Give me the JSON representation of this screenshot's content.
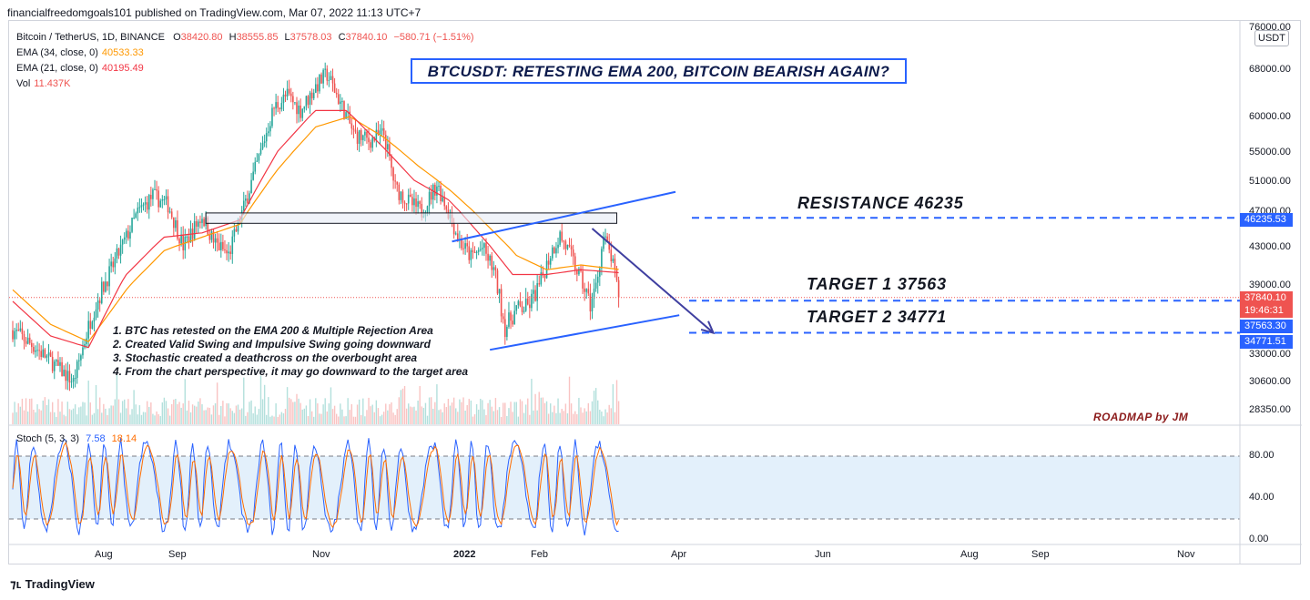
{
  "publisher_line": "financialfreedomgoals101 published on TradingView.com, Mar 07, 2022 11:13 UTC+7",
  "legend": {
    "symbol": "Bitcoin / TetherUS, 1D, BINANCE",
    "open_label": "O",
    "open": "38420.80",
    "high_label": "H",
    "high": "38555.85",
    "low_label": "L",
    "low": "37578.03",
    "close_label": "C",
    "close": "37840.10",
    "change": "−580.71 (−1.51%)",
    "ema34_label": "EMA (34, close, 0)",
    "ema34_value": "40533.33",
    "ema21_label": "EMA (21, close, 0)",
    "ema21_value": "40195.49",
    "vol_label": "Vol",
    "vol_value": "11.437K"
  },
  "title": "BTCUSDT: RETESTING EMA 200, BITCOIN BEARISH AGAIN?",
  "levels": {
    "resistance": "RESISTANCE  46235",
    "target1": "TARGET 1  37563",
    "target2": "TARGET 2  34771"
  },
  "notes": [
    "1. BTC has retested on the EMA 200 & Multiple Rejection Area",
    "2. Created Valid Swing and Impulsive Swing going downward",
    "3. Stochastic created a deathcross on the overbought area",
    "4. From the chart perspective, it may go downward to the target area"
  ],
  "roadmap": "ROADMAP by JM",
  "currency_badge": "USDT",
  "price_axis": [
    "76000.00",
    "68000.00",
    "60000.00",
    "55000.00",
    "51000.00",
    "47000.00",
    "43000.00",
    "39000.00",
    "33000.00",
    "30600.00",
    "28350.00"
  ],
  "price_tags": {
    "resistance": "46235.53",
    "last": "37840.10",
    "countdown": "19:46:31",
    "target1": "37563.30",
    "target2": "34771.51"
  },
  "time_axis": [
    {
      "label": "Aug",
      "bold": false
    },
    {
      "label": "Sep",
      "bold": false
    },
    {
      "label": "Nov",
      "bold": false
    },
    {
      "label": "2022",
      "bold": true
    },
    {
      "label": "Feb",
      "bold": false
    },
    {
      "label": "Apr",
      "bold": false
    },
    {
      "label": "Jun",
      "bold": false
    },
    {
      "label": "Aug",
      "bold": false
    },
    {
      "label": "Sep",
      "bold": false
    },
    {
      "label": "Nov",
      "bold": false
    }
  ],
  "stoch": {
    "label": "Stoch (5, 3, 3)",
    "k_value": "7.58",
    "d_value": "18.14",
    "axis": [
      "80.00",
      "40.00",
      "0.00"
    ]
  },
  "branding": "TradingView",
  "colors": {
    "up": "#26a69a",
    "down": "#ef5350",
    "ema34": "#ff9800",
    "ema21": "#f23645",
    "stoch_k": "#2962ff",
    "stoch_d": "#ff6d00",
    "level": "#2962ff",
    "arrow": "#3f3fa0"
  },
  "chart_data": {
    "type": "candlestick",
    "title": "BTCUSDT: RETESTING EMA 200, BITCOIN BEARISH AGAIN?",
    "symbol": "BTCUSDT",
    "timeframe": "1D",
    "xlabel": "",
    "ylabel": "USDT",
    "x_ticks": [
      "Aug",
      "Sep",
      "Nov",
      "2022",
      "Feb",
      "Apr",
      "Jun",
      "Aug",
      "Sep",
      "Nov"
    ],
    "ylim": [
      27000,
      78000
    ],
    "anchors": [
      {
        "x": 0,
        "p": 35000
      },
      {
        "x": 12,
        "p": 33500
      },
      {
        "x": 22,
        "p": 32000
      },
      {
        "x": 32,
        "p": 30500
      },
      {
        "x": 42,
        "p": 36500
      },
      {
        "x": 52,
        "p": 40500
      },
      {
        "x": 60,
        "p": 44000
      },
      {
        "x": 66,
        "p": 46800
      },
      {
        "x": 74,
        "p": 49000
      },
      {
        "x": 82,
        "p": 47800
      },
      {
        "x": 90,
        "p": 43000
      },
      {
        "x": 100,
        "p": 46500
      },
      {
        "x": 106,
        "p": 43500
      },
      {
        "x": 114,
        "p": 42000
      },
      {
        "x": 122,
        "p": 47500
      },
      {
        "x": 130,
        "p": 54000
      },
      {
        "x": 138,
        "p": 61500
      },
      {
        "x": 145,
        "p": 63500
      },
      {
        "x": 152,
        "p": 61000
      },
      {
        "x": 160,
        "p": 65000
      },
      {
        "x": 166,
        "p": 67000
      },
      {
        "x": 172,
        "p": 63000
      },
      {
        "x": 180,
        "p": 57500
      },
      {
        "x": 188,
        "p": 56500
      },
      {
        "x": 196,
        "p": 57500
      },
      {
        "x": 202,
        "p": 50000
      },
      {
        "x": 210,
        "p": 48000
      },
      {
        "x": 216,
        "p": 47000
      },
      {
        "x": 224,
        "p": 50500
      },
      {
        "x": 230,
        "p": 47000
      },
      {
        "x": 236,
        "p": 43500
      },
      {
        "x": 242,
        "p": 41800
      },
      {
        "x": 248,
        "p": 42800
      },
      {
        "x": 254,
        "p": 40500
      },
      {
        "x": 260,
        "p": 35200
      },
      {
        "x": 266,
        "p": 36800
      },
      {
        "x": 272,
        "p": 37000
      },
      {
        "x": 278,
        "p": 38800
      },
      {
        "x": 284,
        "p": 42200
      },
      {
        "x": 289,
        "p": 44200
      },
      {
        "x": 294,
        "p": 42200
      },
      {
        "x": 300,
        "p": 39500
      },
      {
        "x": 305,
        "p": 37200
      },
      {
        "x": 308,
        "p": 38800
      },
      {
        "x": 312,
        "p": 44000
      },
      {
        "x": 316,
        "p": 41800
      },
      {
        "x": 320,
        "p": 37840
      }
    ],
    "ema34": [
      {
        "x": 0,
        "p": 38500
      },
      {
        "x": 20,
        "p": 35500
      },
      {
        "x": 40,
        "p": 34000
      },
      {
        "x": 60,
        "p": 38500
      },
      {
        "x": 80,
        "p": 42500
      },
      {
        "x": 100,
        "p": 44000
      },
      {
        "x": 120,
        "p": 45500
      },
      {
        "x": 140,
        "p": 52500
      },
      {
        "x": 160,
        "p": 58500
      },
      {
        "x": 178,
        "p": 60000
      },
      {
        "x": 196,
        "p": 57000
      },
      {
        "x": 214,
        "p": 53000
      },
      {
        "x": 232,
        "p": 49500
      },
      {
        "x": 250,
        "p": 45500
      },
      {
        "x": 266,
        "p": 42000
      },
      {
        "x": 282,
        "p": 40500
      },
      {
        "x": 300,
        "p": 41000
      },
      {
        "x": 320,
        "p": 40533
      }
    ],
    "ema21": [
      {
        "x": 0,
        "p": 37500
      },
      {
        "x": 20,
        "p": 34500
      },
      {
        "x": 40,
        "p": 33500
      },
      {
        "x": 60,
        "p": 40000
      },
      {
        "x": 80,
        "p": 44000
      },
      {
        "x": 100,
        "p": 44500
      },
      {
        "x": 120,
        "p": 46000
      },
      {
        "x": 140,
        "p": 55000
      },
      {
        "x": 160,
        "p": 61000
      },
      {
        "x": 176,
        "p": 61000
      },
      {
        "x": 194,
        "p": 56000
      },
      {
        "x": 212,
        "p": 51000
      },
      {
        "x": 230,
        "p": 48500
      },
      {
        "x": 248,
        "p": 44000
      },
      {
        "x": 264,
        "p": 40000
      },
      {
        "x": 282,
        "p": 40000
      },
      {
        "x": 300,
        "p": 40500
      },
      {
        "x": 320,
        "p": 40195
      }
    ],
    "levels_usdt": {
      "resistance": 46235.53,
      "last": 37840.1,
      "target1": 37563.3,
      "target2": 34771.51
    },
    "stochastic": {
      "k": 7.58,
      "d": 18.14,
      "overbought": 80,
      "oversold": 20
    },
    "annotations": [
      {
        "type": "rectangle",
        "label": "multiple rejection area",
        "x_from": 102,
        "x_to": 319,
        "p_from": 45600,
        "p_to": 46800
      },
      {
        "type": "trendline",
        "label": "channel top",
        "from": {
          "x": 232,
          "p": 43500
        },
        "to": {
          "x": 350,
          "p": 49500
        }
      },
      {
        "type": "trendline",
        "label": "channel bottom",
        "from": {
          "x": 252,
          "p": 33300
        },
        "to": {
          "x": 352,
          "p": 36300
        }
      },
      {
        "type": "arrow",
        "label": "projected move",
        "from": {
          "x": 306,
          "p": 45000
        },
        "to": {
          "x": 370,
          "p": 34771
        }
      }
    ]
  }
}
